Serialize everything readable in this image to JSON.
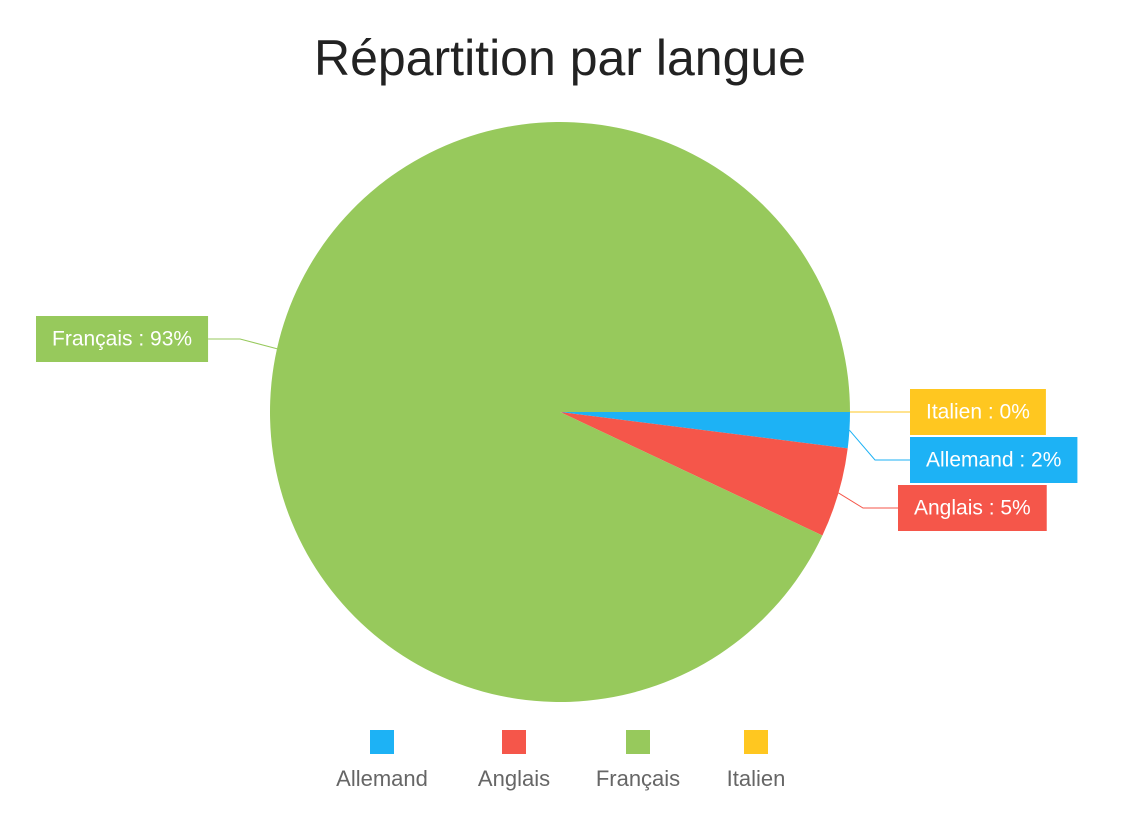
{
  "chart_data": {
    "type": "pie",
    "title": "Répartition par langue",
    "categories": [
      "Allemand",
      "Anglais",
      "Français",
      "Italien"
    ],
    "values": [
      2,
      5,
      93,
      0
    ],
    "value_labels": [
      "Allemand : 2%",
      "Anglais : 5%",
      "Français : 93%",
      "Italien : 0%"
    ],
    "colors": [
      "#1db2f5",
      "#f5564a",
      "#97c95c",
      "#ffc720"
    ],
    "legend": "bottom"
  }
}
